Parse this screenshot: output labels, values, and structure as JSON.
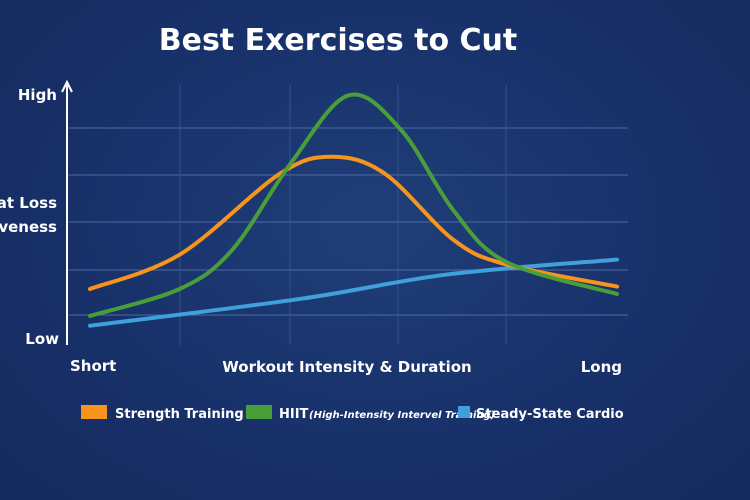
{
  "chart_data": {
    "type": "line",
    "title": "Best Exercises to Cut",
    "xlabel": "Workout Intensity & Duration",
    "ylabel": "Fat Loss Effectiveness",
    "ylabel_visible": [
      "Fat Loss",
      "tiveness"
    ],
    "x_tick_labels": {
      "start": "Short",
      "end": "Long"
    },
    "y_tick_labels": {
      "bottom": "Low",
      "top": "High"
    },
    "xlim": [
      0,
      10
    ],
    "ylim": [
      0,
      10
    ],
    "grid": true,
    "legend_position": "bottom",
    "series": [
      {
        "name": "Strength Training",
        "color": "#f7941d",
        "x": [
          0,
          1.7,
          3.6,
          4.6,
          5.6,
          6.9,
          7.9,
          10
        ],
        "y": [
          2.0,
          3.4,
          6.7,
          7.4,
          6.7,
          4.0,
          3.0,
          2.1
        ]
      },
      {
        "name": "HIIT",
        "name_note": "(High-Intensity Intervel Training)",
        "color": "#4a9e3a",
        "x": [
          0,
          1.7,
          2.7,
          3.8,
          4.9,
          5.9,
          6.9,
          7.9,
          10
        ],
        "y": [
          0.9,
          2.0,
          3.6,
          7.1,
          9.9,
          8.5,
          5.2,
          3.1,
          1.8
        ]
      },
      {
        "name": "Steady-State Cardio",
        "color": "#3fa0dc",
        "x": [
          0,
          4.0,
          6.8,
          10
        ],
        "y": [
          0.5,
          1.6,
          2.6,
          3.2
        ]
      }
    ]
  }
}
